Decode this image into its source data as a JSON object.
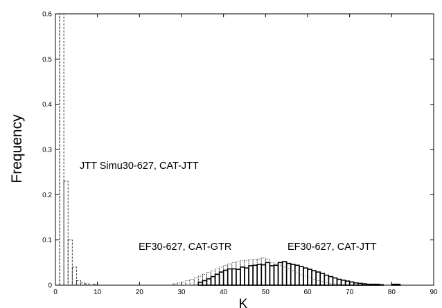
{
  "chart_data": {
    "type": "bar",
    "xlabel": "K",
    "ylabel": "Frequency",
    "xlim": [
      0,
      90
    ],
    "ylim": [
      0,
      0.6
    ],
    "xticks": [
      0,
      10,
      20,
      30,
      40,
      50,
      60,
      70,
      80,
      90
    ],
    "yticks": [
      0,
      0.1,
      0.2,
      0.3,
      0.4,
      0.5,
      0.6
    ],
    "bin_width": 1,
    "grid": false,
    "annotations": [
      "JTT Simu30-627, CAT-JTT",
      "EF30-627, CAT-GTR",
      "EF30-627, CAT-JTT"
    ],
    "series": [
      {
        "style": "dashed",
        "bins": [
          [
            0,
            0.6
          ],
          [
            1,
            0.6
          ],
          [
            2,
            0.23
          ],
          [
            3,
            0.1
          ],
          [
            4,
            0.04
          ],
          [
            5,
            0.01
          ],
          [
            6,
            0.005
          ],
          [
            7,
            0.003
          ],
          [
            9,
            0.002
          ]
        ]
      },
      {
        "style": "dotted",
        "bins": [
          [
            28,
            0.003
          ],
          [
            29,
            0.005
          ],
          [
            30,
            0.007
          ],
          [
            31,
            0.01
          ],
          [
            32,
            0.013
          ],
          [
            33,
            0.016
          ],
          [
            34,
            0.02
          ],
          [
            35,
            0.024
          ],
          [
            36,
            0.028
          ],
          [
            37,
            0.032
          ],
          [
            38,
            0.036
          ],
          [
            39,
            0.04
          ],
          [
            40,
            0.044
          ],
          [
            41,
            0.047
          ],
          [
            42,
            0.05
          ],
          [
            43,
            0.052
          ],
          [
            44,
            0.054
          ],
          [
            45,
            0.055
          ],
          [
            46,
            0.056
          ],
          [
            47,
            0.057
          ],
          [
            48,
            0.058
          ],
          [
            49,
            0.06
          ],
          [
            50,
            0.058
          ],
          [
            51,
            0.05
          ],
          [
            52,
            0.047
          ],
          [
            53,
            0.044
          ],
          [
            54,
            0.04
          ],
          [
            55,
            0.036
          ],
          [
            56,
            0.032
          ],
          [
            57,
            0.027
          ],
          [
            58,
            0.023
          ],
          [
            59,
            0.02
          ],
          [
            60,
            0.016
          ],
          [
            61,
            0.013
          ],
          [
            62,
            0.01
          ],
          [
            63,
            0.008
          ],
          [
            64,
            0.006
          ],
          [
            65,
            0.004
          ],
          [
            66,
            0.003
          ],
          [
            67,
            0.002
          ]
        ]
      },
      {
        "style": "solid",
        "bins": [
          [
            34,
            0.006
          ],
          [
            35,
            0.01
          ],
          [
            36,
            0.014
          ],
          [
            37,
            0.019
          ],
          [
            38,
            0.024
          ],
          [
            39,
            0.029
          ],
          [
            40,
            0.033
          ],
          [
            41,
            0.036
          ],
          [
            42,
            0.036
          ],
          [
            43,
            0.035
          ],
          [
            44,
            0.04
          ],
          [
            45,
            0.038
          ],
          [
            46,
            0.043
          ],
          [
            47,
            0.044
          ],
          [
            48,
            0.046
          ],
          [
            49,
            0.045
          ],
          [
            50,
            0.05
          ],
          [
            51,
            0.043
          ],
          [
            52,
            0.044
          ],
          [
            53,
            0.05
          ],
          [
            54,
            0.052
          ],
          [
            55,
            0.048
          ],
          [
            56,
            0.046
          ],
          [
            57,
            0.044
          ],
          [
            58,
            0.041
          ],
          [
            59,
            0.038
          ],
          [
            60,
            0.035
          ],
          [
            61,
            0.032
          ],
          [
            62,
            0.029
          ],
          [
            63,
            0.026
          ],
          [
            64,
            0.022
          ],
          [
            65,
            0.019
          ],
          [
            66,
            0.016
          ],
          [
            67,
            0.013
          ],
          [
            68,
            0.011
          ],
          [
            69,
            0.009
          ],
          [
            70,
            0.007
          ],
          [
            71,
            0.005
          ],
          [
            72,
            0.004
          ],
          [
            73,
            0.003
          ],
          [
            74,
            0.002
          ],
          [
            75,
            0.002
          ],
          [
            76,
            0.002
          ],
          [
            77,
            0.001
          ],
          [
            80,
            0.002
          ],
          [
            81,
            0.002
          ]
        ]
      }
    ]
  }
}
